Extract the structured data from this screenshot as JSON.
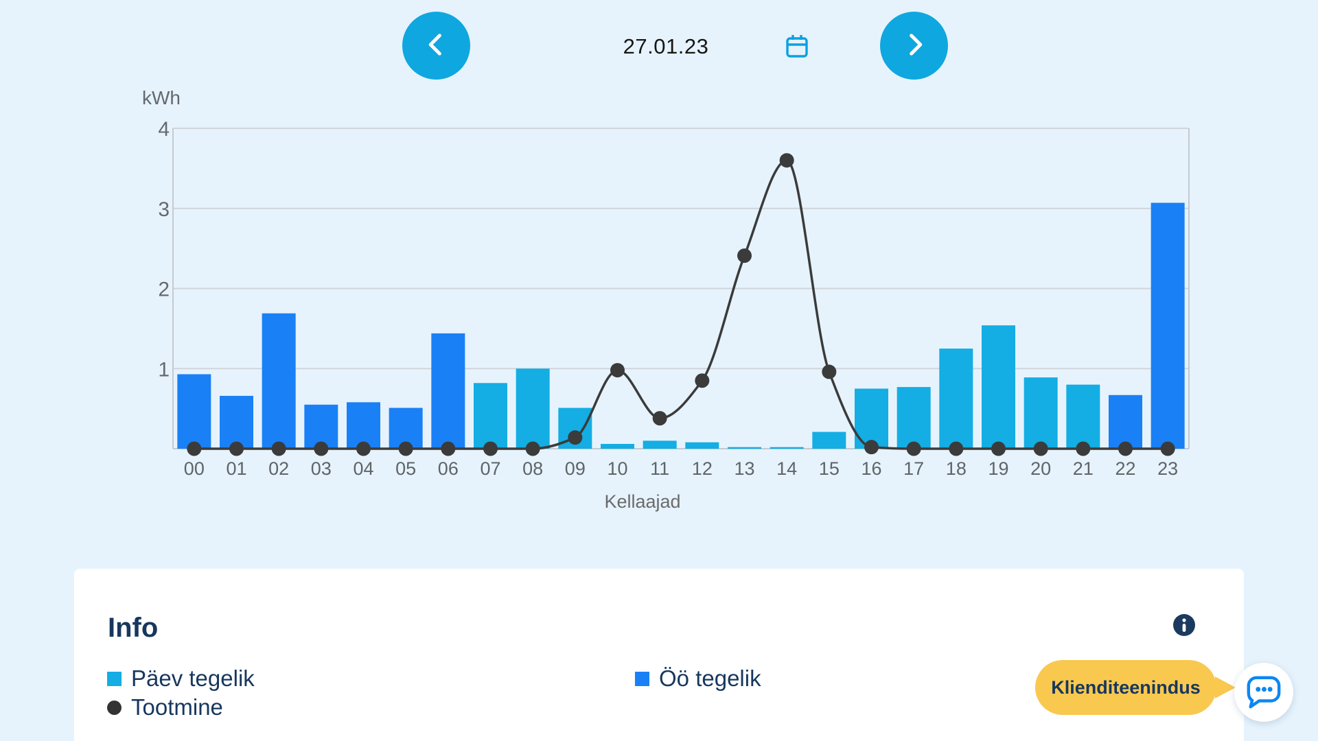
{
  "topbar": {
    "date": "27.01.23"
  },
  "chart_data": {
    "type": "bar+line",
    "ylabel": "kWh",
    "xlabel": "Kellaajad",
    "ylim": [
      0,
      4
    ],
    "yticks": [
      1,
      2,
      3,
      4
    ],
    "grid": true,
    "legend_position": "bottom",
    "categories": [
      "00",
      "01",
      "02",
      "03",
      "04",
      "05",
      "06",
      "07",
      "08",
      "09",
      "10",
      "11",
      "12",
      "13",
      "14",
      "15",
      "16",
      "17",
      "18",
      "19",
      "20",
      "21",
      "22",
      "23"
    ],
    "series": [
      {
        "name": "Päev tegelik",
        "type": "bar",
        "color": "#14ade4",
        "values": [
          null,
          null,
          null,
          null,
          null,
          null,
          null,
          0.82,
          1.0,
          0.51,
          0.06,
          0.1,
          0.08,
          0.02,
          0.02,
          0.21,
          0.75,
          0.77,
          1.25,
          1.54,
          0.89,
          0.8,
          null,
          null
        ]
      },
      {
        "name": "Öö tegelik",
        "type": "bar",
        "color": "#1a80f5",
        "values": [
          0.93,
          0.66,
          1.69,
          0.55,
          0.58,
          0.51,
          1.44,
          null,
          null,
          null,
          null,
          null,
          null,
          null,
          null,
          null,
          null,
          null,
          null,
          null,
          null,
          null,
          0.67,
          3.07
        ]
      },
      {
        "name": "Tootmine",
        "type": "line",
        "color": "#3b3b3b",
        "values": [
          0,
          0,
          0,
          0,
          0,
          0,
          0,
          0,
          0,
          0.14,
          0.98,
          0.38,
          0.85,
          2.41,
          3.6,
          0.96,
          0.02,
          0,
          0,
          0,
          0,
          0,
          0,
          0
        ]
      }
    ]
  },
  "footer": {
    "title": "Info",
    "support_label": "Klienditeenindus"
  },
  "colors": {
    "background": "#e6f3fc",
    "card": "#ffffff",
    "nav_button": "#0fa7df",
    "calendar_icon": "#0aa0e2",
    "grid_line": "#cfd5da",
    "axis_line": "#c4cacf",
    "tick_text": "#64696e",
    "navy_text": "#17375e",
    "support_yellow": "#f9c84f",
    "chat_blue": "#0d87f2"
  }
}
